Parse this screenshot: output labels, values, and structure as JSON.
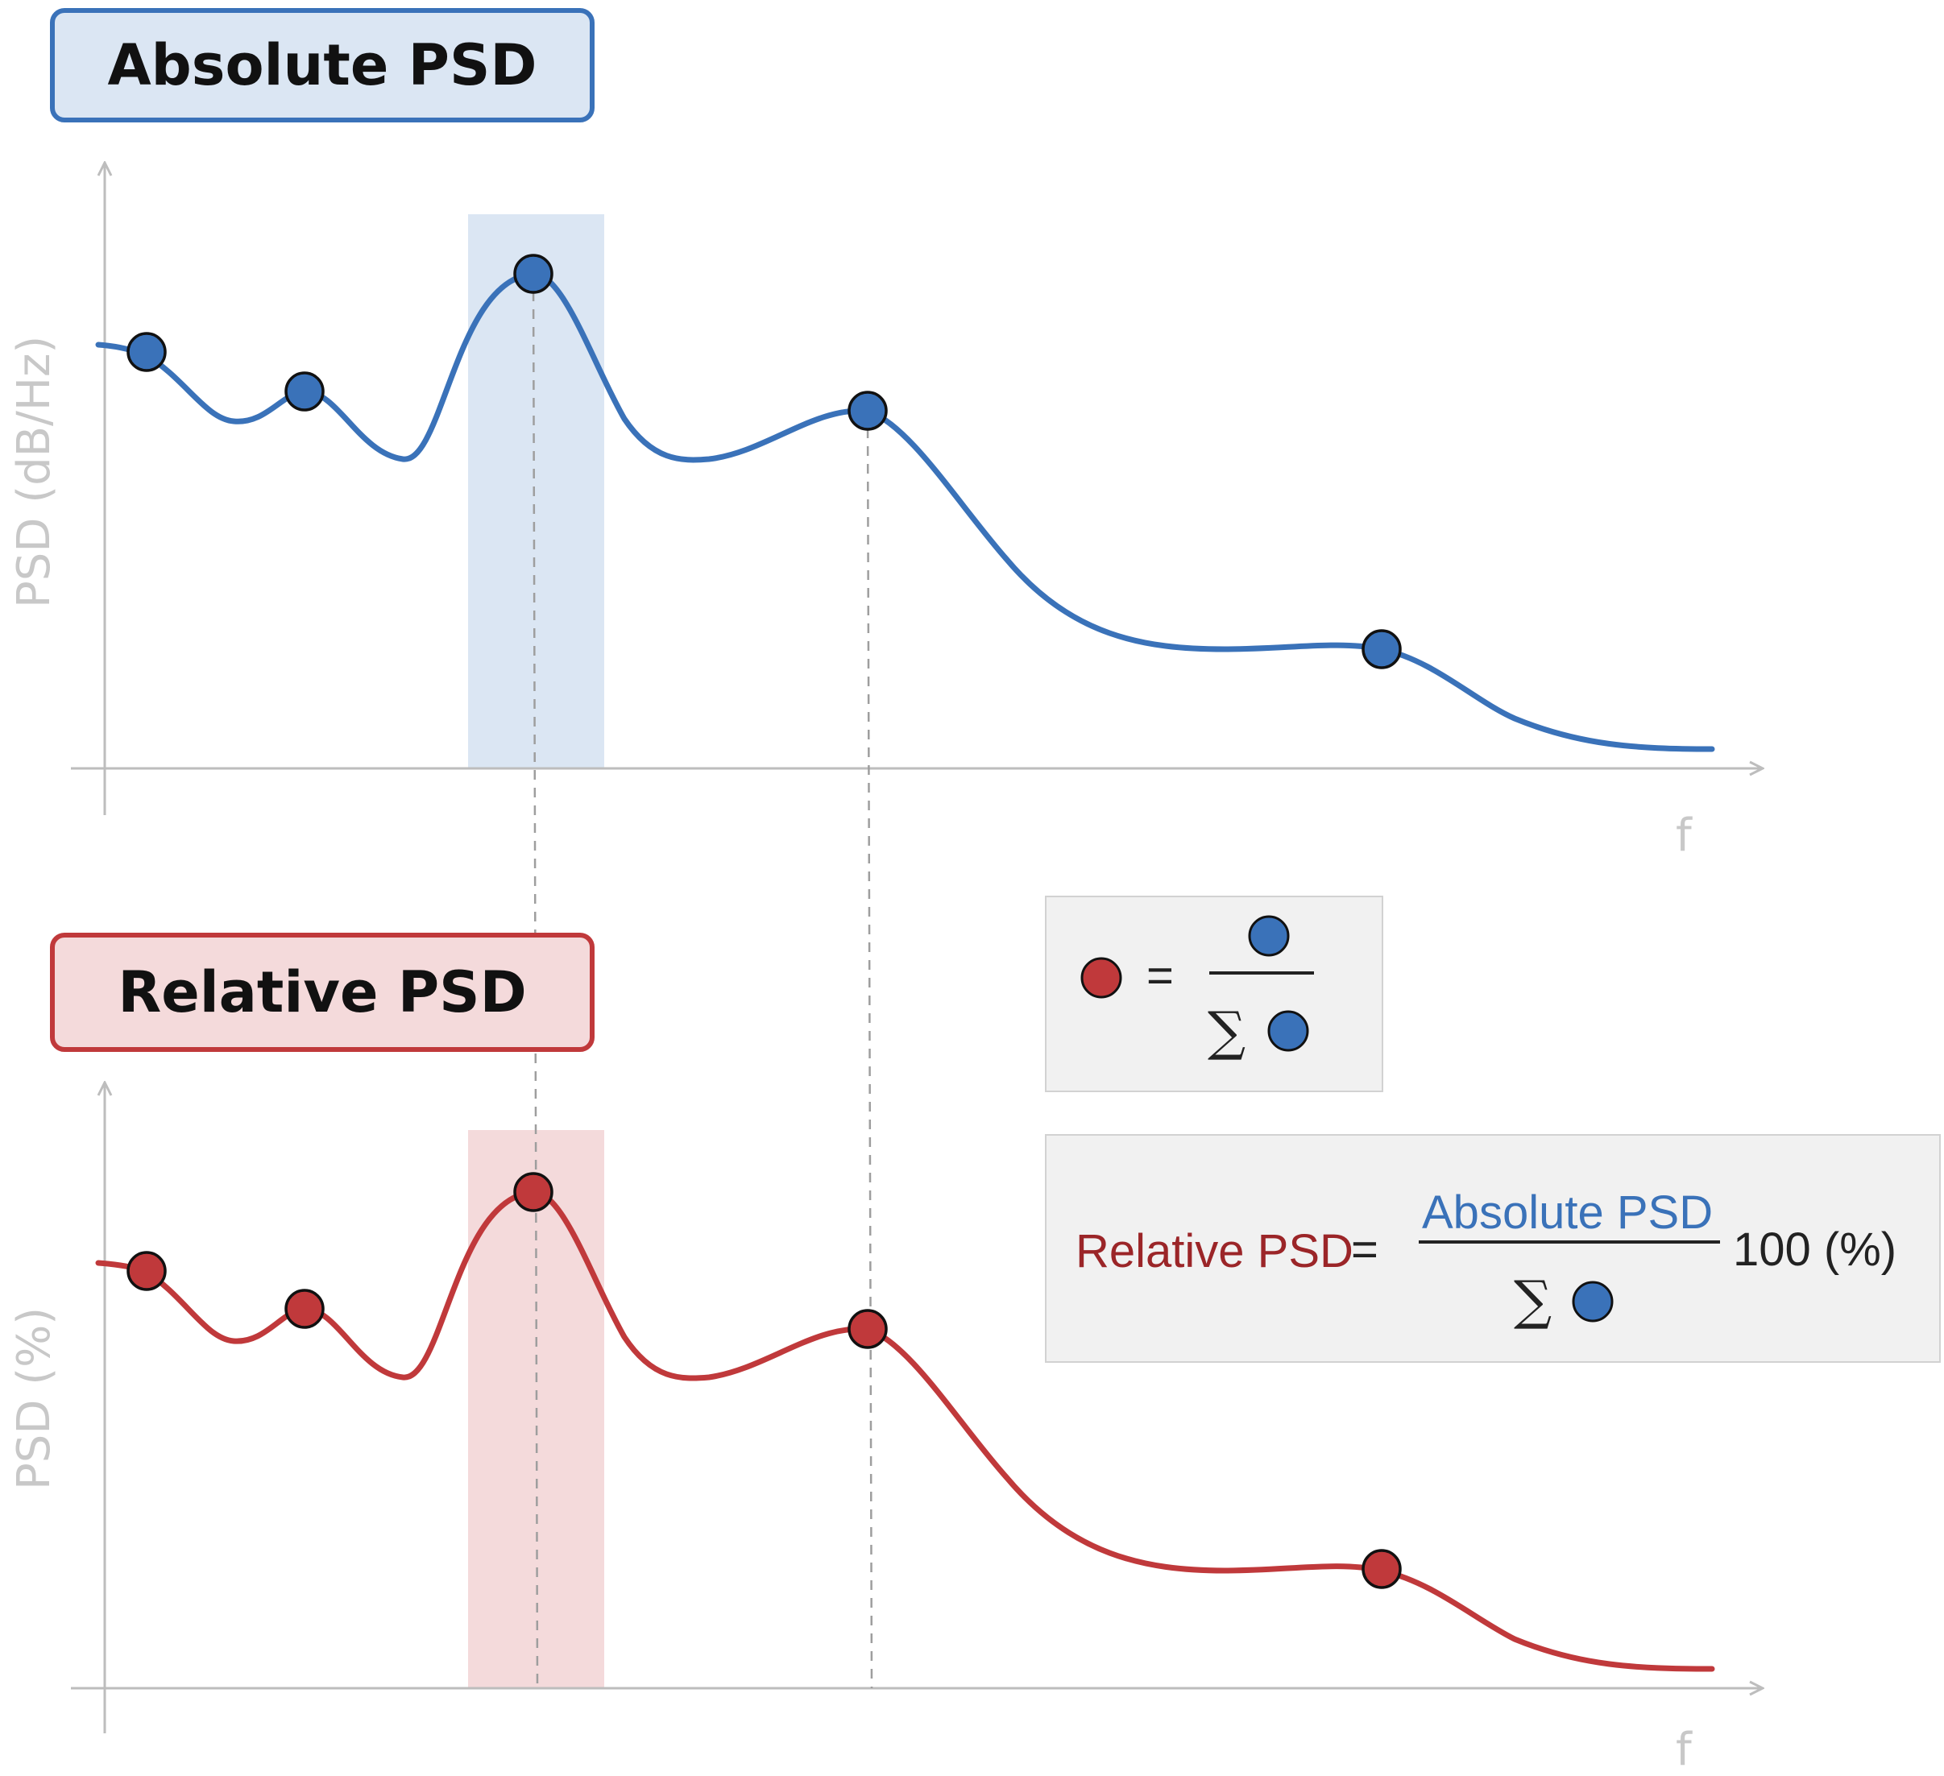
{
  "top_panel": {
    "title": "Absolute PSD",
    "ylabel": "PSD (dB/Hz)",
    "xlabel": "f",
    "line_color": "#3a72b9",
    "highlight_color": "#dbe6f3"
  },
  "bottom_panel": {
    "title": "Relative PSD",
    "ylabel": "PSD (%)",
    "xlabel": "f",
    "line_color": "#c0393b",
    "highlight_color": "#f4dadb"
  },
  "formula_1": {
    "equals": "=",
    "sum_symbol": "∑"
  },
  "formula_2": {
    "lhs": "Relative PSD",
    "equals": "=",
    "numerator": "Absolute PSD",
    "sum_symbol": "∑",
    "multiplier": "100 (%)",
    "lhs_color": "#9b2528",
    "numerator_color": "#3a72b9"
  }
}
